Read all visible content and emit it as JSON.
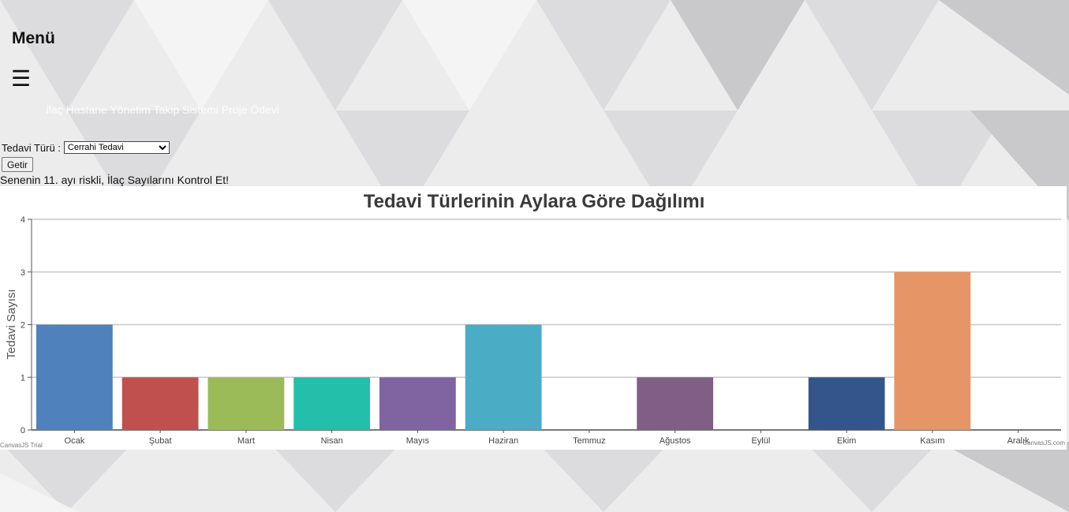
{
  "menu": {
    "title": "Menü",
    "toggle_icon": "hamburger-icon",
    "toggle_glyph": "☰"
  },
  "subtitle": "İlaç Hastane Yönetim Takip Sistemi Proje Ödevi",
  "form": {
    "label": "Tedavi Türü :",
    "selected": "Cerrahi Tedavi",
    "submit_label": "Getir"
  },
  "warning": "Senenin 11. ayı riskli, İlaç Sayılarını Kontrol Et!",
  "chart_data": {
    "type": "bar",
    "title": "Tedavi Türlerinin Aylara Göre Dağılımı",
    "xlabel": "",
    "ylabel": "Tedavi Sayısı",
    "ylim": [
      0,
      4
    ],
    "yticks": [
      0,
      1,
      2,
      3,
      4
    ],
    "grid": true,
    "categories": [
      "Ocak",
      "Şubat",
      "Mart",
      "Nisan",
      "Mayıs",
      "Haziran",
      "Temmuz",
      "Ağustos",
      "Eylül",
      "Ekim",
      "Kasım",
      "Aralık"
    ],
    "values": [
      2,
      1,
      1,
      1,
      1,
      2,
      0,
      1,
      0,
      1,
      3,
      0
    ],
    "colors": [
      "#4f81bc",
      "#c0504e",
      "#9bbb58",
      "#23bfaa",
      "#8064a1",
      "#4aacc5",
      "#f79647",
      "#7f6084",
      "#77a033",
      "#33558b",
      "#e59566",
      "#6dc6cd"
    ],
    "watermark_left": "CanvasJS Trial",
    "watermark_right": "CanvasJS.com"
  }
}
